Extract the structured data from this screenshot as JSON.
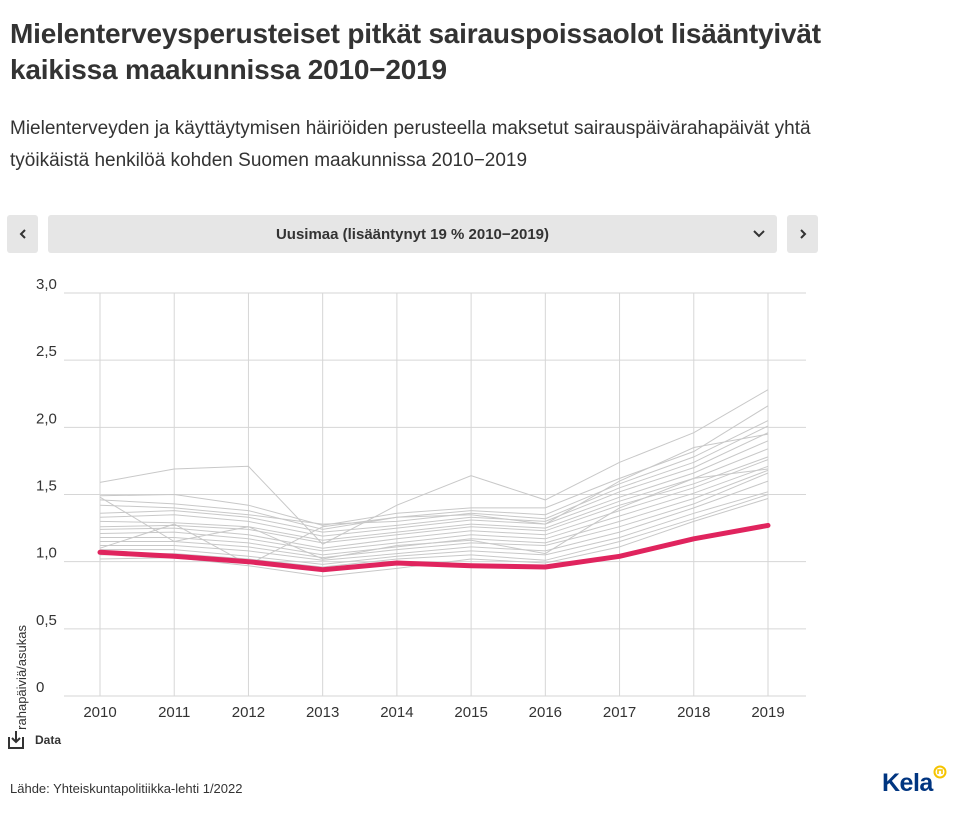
{
  "title": "Mielenterveysperusteiset pitkät sairauspoissaolot lisääntyivät kaikissa maakunnissa 2010−2019",
  "subtitle": "Mielenterveyden ja käyttäytymisen häiriöiden perusteella maksetut sairauspäivärahapäivät yhtä työikäistä henkilöä kohden Suomen maakunnissa 2010−2019",
  "selector": {
    "selected": "Uusimaa (lisääntynyt 19 % 2010−2019)",
    "prev_icon": "chevron-left-icon",
    "next_icon": "chevron-right-icon",
    "dropdown_icon": "chevron-down-icon"
  },
  "data_link": {
    "label": "Data",
    "icon": "download-icon"
  },
  "source": "Lähde: Yhteiskuntapolitiikka-lehti 1/2022",
  "logo": {
    "text": "Kela",
    "color": "#003580",
    "accent": "#f5c400"
  },
  "chart_data": {
    "type": "line",
    "title": "",
    "xlabel": "",
    "ylabel": "Sairauspäivärahapäiviä/asukas",
    "x": [
      "2010",
      "2011",
      "2012",
      "2013",
      "2014",
      "2015",
      "2016",
      "2017",
      "2018",
      "2019"
    ],
    "y_ticks": [
      "0",
      "0,5",
      "1,0",
      "1,5",
      "2,0",
      "2,5",
      "3,0"
    ],
    "y_tick_values": [
      0,
      0.5,
      1.0,
      1.5,
      2.0,
      2.5,
      3.0
    ],
    "ylim": [
      0,
      3.0
    ],
    "grid": true,
    "highlight_color": "#e0245e",
    "background_color": "#c8c8c8",
    "highlight": {
      "name": "Uusimaa",
      "values": [
        1.07,
        1.04,
        1.0,
        0.94,
        0.99,
        0.97,
        0.96,
        1.04,
        1.17,
        1.27
      ]
    },
    "series": [
      {
        "values": [
          1.59,
          1.69,
          1.71,
          1.13,
          1.42,
          1.64,
          1.46,
          1.74,
          1.96,
          2.28
        ]
      },
      {
        "values": [
          1.49,
          1.5,
          1.42,
          1.27,
          1.36,
          1.4,
          1.4,
          1.62,
          1.82,
          2.16
        ]
      },
      {
        "values": [
          1.46,
          1.43,
          1.38,
          1.24,
          1.33,
          1.38,
          1.35,
          1.58,
          1.78,
          2.05
        ]
      },
      {
        "values": [
          1.42,
          1.4,
          1.35,
          1.28,
          1.3,
          1.36,
          1.32,
          1.55,
          1.74,
          2.01
        ]
      },
      {
        "values": [
          1.36,
          1.38,
          1.33,
          1.22,
          1.27,
          1.33,
          1.3,
          1.52,
          1.7,
          1.96
        ]
      },
      {
        "values": [
          1.33,
          1.35,
          1.3,
          1.19,
          1.25,
          1.31,
          1.28,
          1.48,
          1.66,
          1.9
        ]
      },
      {
        "values": [
          1.3,
          1.29,
          1.26,
          1.16,
          1.22,
          1.28,
          1.25,
          1.45,
          1.62,
          1.84
        ]
      },
      {
        "values": [
          1.26,
          1.27,
          1.24,
          1.14,
          1.2,
          1.26,
          1.23,
          1.42,
          1.58,
          1.78
        ]
      },
      {
        "values": [
          1.24,
          1.25,
          1.2,
          1.1,
          1.17,
          1.23,
          1.2,
          1.38,
          1.55,
          1.76
        ]
      },
      {
        "values": [
          1.21,
          1.22,
          1.17,
          1.08,
          1.14,
          1.2,
          1.17,
          1.34,
          1.51,
          1.71
        ]
      },
      {
        "values": [
          1.18,
          1.18,
          1.14,
          1.05,
          1.11,
          1.17,
          1.14,
          1.3,
          1.47,
          1.68
        ]
      },
      {
        "values": [
          1.15,
          1.15,
          1.11,
          1.03,
          1.09,
          1.14,
          1.12,
          1.26,
          1.43,
          1.66
        ]
      },
      {
        "values": [
          1.12,
          1.12,
          1.08,
          1.01,
          1.06,
          1.11,
          1.08,
          1.22,
          1.4,
          1.6
        ]
      },
      {
        "values": [
          1.09,
          1.09,
          1.04,
          0.98,
          1.04,
          1.08,
          1.05,
          1.18,
          1.36,
          1.52
        ]
      },
      {
        "values": [
          1.05,
          1.06,
          1.02,
          0.96,
          1.02,
          1.05,
          1.01,
          1.15,
          1.32,
          1.5
        ]
      },
      {
        "values": [
          1.02,
          1.03,
          0.97,
          0.89,
          0.95,
          1.02,
          0.99,
          1.11,
          1.3,
          1.47
        ]
      },
      {
        "values": [
          1.1,
          1.28,
          0.98,
          1.26,
          1.33,
          1.35,
          1.28,
          1.6,
          1.85,
          1.95
        ]
      },
      {
        "values": [
          1.48,
          1.15,
          1.26,
          1.02,
          1.12,
          1.16,
          1.06,
          1.4,
          1.62,
          1.69
        ]
      }
    ]
  }
}
